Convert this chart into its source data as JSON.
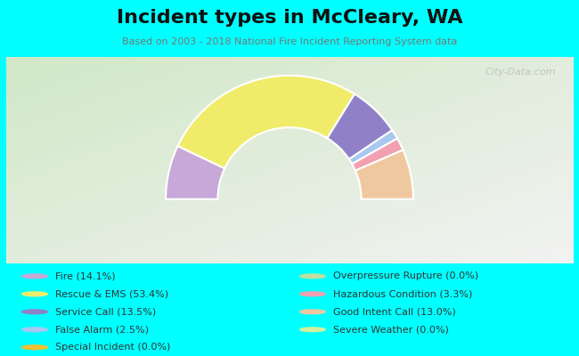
{
  "title": "Incident types in McCleary, WA",
  "subtitle": "Based on 2003 - 2018 National Fire Incident Reporting System data",
  "outer_bg": "#00FFFF",
  "chart_panel_color": "#e8f0e0",
  "categories": [
    "Fire (14.1%)",
    "Rescue & EMS (53.4%)",
    "Service Call (13.5%)",
    "False Alarm (2.5%)",
    "Special Incident (0.0%)",
    "Overpressure Rupture (0.0%)",
    "Hazardous Condition (3.3%)",
    "Good Intent Call (13.0%)",
    "Severe Weather (0.0%)"
  ],
  "values": [
    14.1,
    53.4,
    13.5,
    2.5,
    0.0,
    0.0,
    3.3,
    13.0,
    0.0
  ],
  "colors": [
    "#c8a8d8",
    "#f0ec6a",
    "#9080c8",
    "#a8c8f0",
    "#f0c030",
    "#c0e0a0",
    "#f0a0b0",
    "#f0c8a0",
    "#d0f0a0"
  ],
  "watermark": "City-Data.com",
  "title_fontsize": 16,
  "subtitle_fontsize": 8,
  "legend_fontsize": 8
}
